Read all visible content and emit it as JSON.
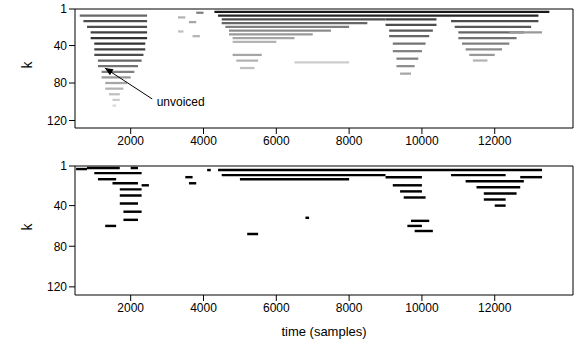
{
  "chart_data": [
    {
      "type": "heatmap",
      "y_label": "k",
      "xlim": [
        470,
        14150
      ],
      "xticks": [
        2000,
        4000,
        6000,
        8000,
        10000,
        12000
      ],
      "ylim": [
        1,
        128
      ],
      "yticks": [
        1,
        40,
        80,
        120
      ],
      "annotation": "unvoiced",
      "segments": [
        [
          600,
          2450,
          8,
          0.6
        ],
        [
          700,
          2450,
          14,
          0.7
        ],
        [
          800,
          2450,
          20,
          0.7
        ],
        [
          900,
          2450,
          26,
          0.75
        ],
        [
          900,
          2450,
          32,
          0.8
        ],
        [
          1000,
          2400,
          38,
          0.8
        ],
        [
          1000,
          2400,
          44,
          0.75
        ],
        [
          1000,
          2350,
          50,
          0.7
        ],
        [
          1100,
          2300,
          56,
          0.6
        ],
        [
          1100,
          2200,
          62,
          0.55
        ],
        [
          1200,
          2100,
          68,
          0.5
        ],
        [
          1200,
          2000,
          74,
          0.4
        ],
        [
          1300,
          1900,
          80,
          0.35
        ],
        [
          1300,
          1800,
          86,
          0.3
        ],
        [
          1400,
          1700,
          92,
          0.25
        ],
        [
          1500,
          1700,
          98,
          0.2
        ],
        [
          1500,
          1600,
          104,
          0.15
        ],
        [
          3300,
          3500,
          10,
          0.3
        ],
        [
          3300,
          3450,
          25,
          0.25
        ],
        [
          3600,
          3800,
          15,
          0.35
        ],
        [
          3700,
          3900,
          30,
          0.3
        ],
        [
          3800,
          4000,
          5,
          0.5
        ],
        [
          4300,
          13500,
          4,
          0.9
        ],
        [
          4400,
          13200,
          8,
          0.85
        ],
        [
          4500,
          9000,
          12,
          0.7
        ],
        [
          4500,
          8500,
          16,
          0.6
        ],
        [
          4600,
          8000,
          20,
          0.5
        ],
        [
          4700,
          7500,
          24,
          0.45
        ],
        [
          4700,
          7000,
          28,
          0.4
        ],
        [
          4800,
          6500,
          32,
          0.35
        ],
        [
          4800,
          6000,
          36,
          0.3
        ],
        [
          4800,
          5600,
          50,
          0.35
        ],
        [
          4900,
          5500,
          56,
          0.3
        ],
        [
          5000,
          5400,
          64,
          0.25
        ],
        [
          6500,
          8000,
          58,
          0.2
        ],
        [
          9000,
          10400,
          12,
          0.75
        ],
        [
          9000,
          10400,
          18,
          0.7
        ],
        [
          9100,
          10300,
          24,
          0.65
        ],
        [
          9100,
          10200,
          30,
          0.6
        ],
        [
          9200,
          10100,
          38,
          0.55
        ],
        [
          9200,
          10000,
          46,
          0.5
        ],
        [
          9300,
          9900,
          54,
          0.5
        ],
        [
          9300,
          9800,
          62,
          0.45
        ],
        [
          9400,
          9700,
          70,
          0.35
        ],
        [
          10800,
          13200,
          14,
          0.7
        ],
        [
          10900,
          13000,
          20,
          0.65
        ],
        [
          11000,
          12800,
          26,
          0.6
        ],
        [
          11000,
          12600,
          32,
          0.55
        ],
        [
          11100,
          12400,
          38,
          0.5
        ],
        [
          11200,
          12200,
          44,
          0.45
        ],
        [
          11300,
          12000,
          50,
          0.4
        ],
        [
          11400,
          11800,
          56,
          0.3
        ],
        [
          12400,
          13300,
          26,
          0.4
        ]
      ]
    },
    {
      "type": "heatmap",
      "x_label": "time (samples)",
      "y_label": "k",
      "xlim": [
        470,
        14150
      ],
      "xticks": [
        2000,
        4000,
        6000,
        8000,
        10000,
        12000
      ],
      "ylim": [
        1,
        128
      ],
      "yticks": [
        1,
        40,
        80,
        120
      ],
      "segments": [
        [
          500,
          800,
          4,
          1
        ],
        [
          800,
          1700,
          3,
          1
        ],
        [
          1000,
          2300,
          8,
          1
        ],
        [
          1100,
          1600,
          14,
          1
        ],
        [
          1500,
          2200,
          18,
          1
        ],
        [
          1700,
          2300,
          24,
          1
        ],
        [
          1700,
          2300,
          30,
          1
        ],
        [
          1700,
          2200,
          38,
          1
        ],
        [
          1800,
          2300,
          46,
          1
        ],
        [
          1800,
          2200,
          54,
          1
        ],
        [
          1300,
          1600,
          60,
          1
        ],
        [
          2300,
          2500,
          20,
          1
        ],
        [
          2000,
          2200,
          3,
          1
        ],
        [
          3500,
          3700,
          12,
          1
        ],
        [
          3600,
          3800,
          18,
          1
        ],
        [
          4100,
          4200,
          5,
          1
        ],
        [
          4400,
          13300,
          5,
          1
        ],
        [
          4500,
          9000,
          10,
          1
        ],
        [
          5000,
          8000,
          14,
          1
        ],
        [
          5200,
          5500,
          68,
          1
        ],
        [
          6800,
          6900,
          52,
          1
        ],
        [
          9000,
          10000,
          12,
          1
        ],
        [
          9200,
          10000,
          20,
          1
        ],
        [
          9400,
          10000,
          26,
          1
        ],
        [
          9500,
          10100,
          32,
          1
        ],
        [
          9700,
          10200,
          55,
          1
        ],
        [
          9600,
          10000,
          60,
          1
        ],
        [
          9800,
          10300,
          65,
          1
        ],
        [
          10800,
          12300,
          10,
          1
        ],
        [
          11200,
          12800,
          16,
          1
        ],
        [
          11500,
          12700,
          22,
          1
        ],
        [
          11700,
          12600,
          28,
          1
        ],
        [
          11700,
          12300,
          34,
          1
        ],
        [
          12000,
          12300,
          40,
          1
        ],
        [
          12700,
          13300,
          12,
          1
        ]
      ]
    }
  ]
}
